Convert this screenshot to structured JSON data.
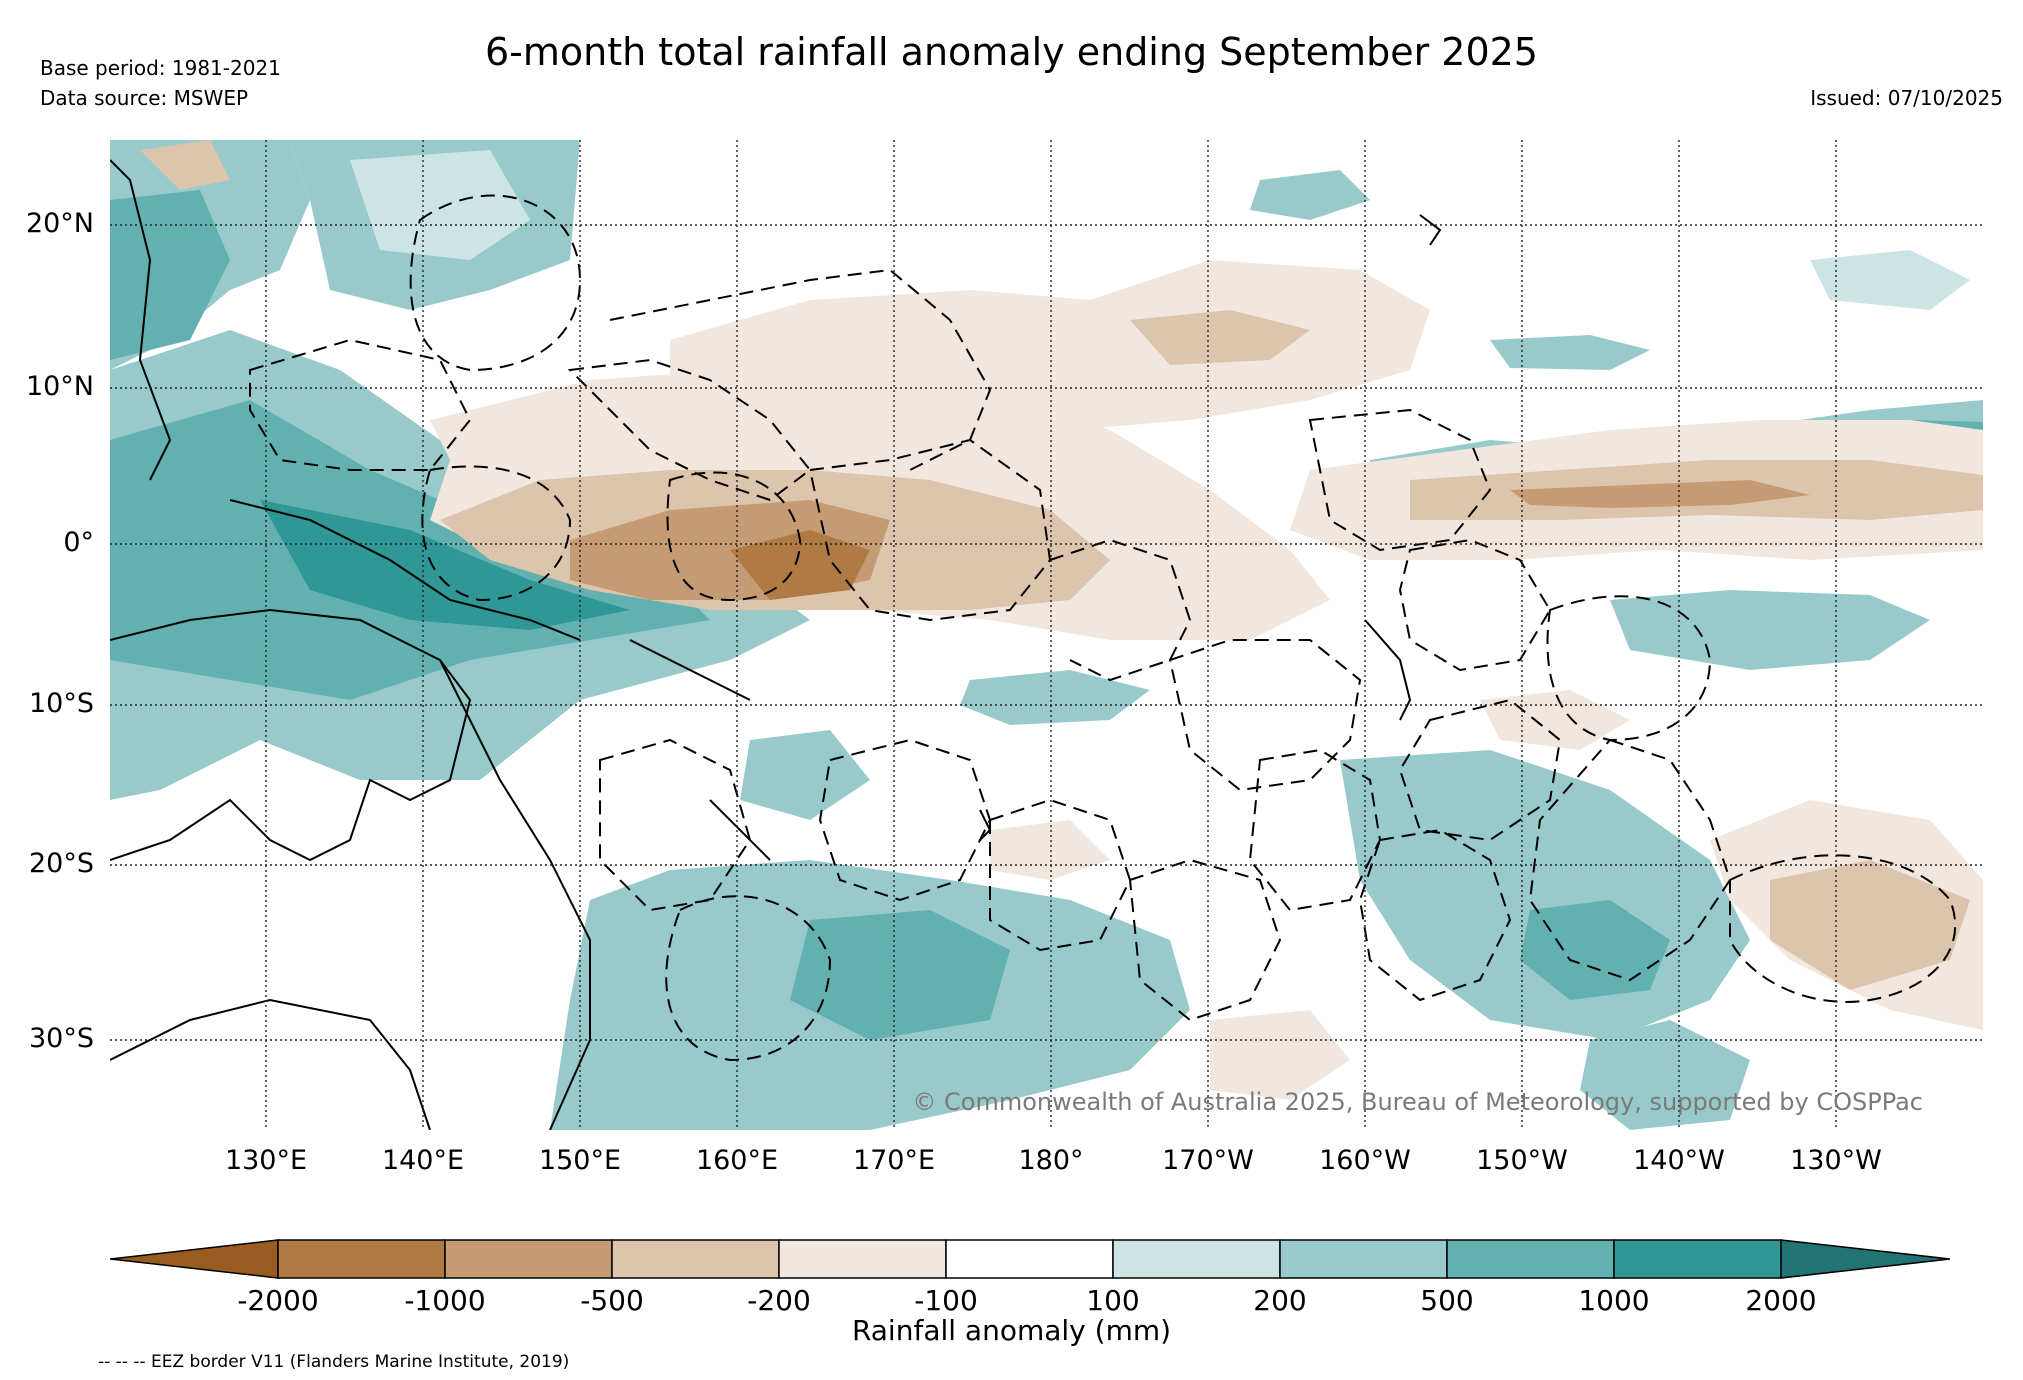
{
  "header": {
    "title": "6-month total rainfall anomaly ending September 2025",
    "base_period": "Base period: 1981-2021",
    "data_source": "Data source: MSWEP",
    "issued": "Issued: 07/10/2025"
  },
  "map": {
    "lat_labels": [
      "20°N",
      "10°N",
      "0°",
      "10°S",
      "20°S",
      "30°S"
    ],
    "lon_labels": [
      "130°E",
      "140°E",
      "150°E",
      "160°E",
      "170°E",
      "180°",
      "170°W",
      "160°W",
      "150°W",
      "140°W",
      "130°W"
    ],
    "watermark": "© Commonwealth of Australia 2025, Bureau of Meteorology, supported by COSPPac"
  },
  "legend": {
    "label": "Rainfall anomaly (mm)",
    "ticks": [
      "-2000",
      "-1000",
      "-500",
      "-200",
      "-100",
      "100",
      "200",
      "500",
      "1000",
      "2000"
    ],
    "colors": [
      "#995c20",
      "#b07a45",
      "#c59b73",
      "#dcc4ad",
      "#f1e7df",
      "#ffffff",
      "#cce5e4",
      "#98cacb",
      "#62b0b0",
      "#2f9796",
      "#227373"
    ],
    "eez_note": "-- -- -- EEZ border V11 (Flanders Marine Institute, 2019)"
  }
}
